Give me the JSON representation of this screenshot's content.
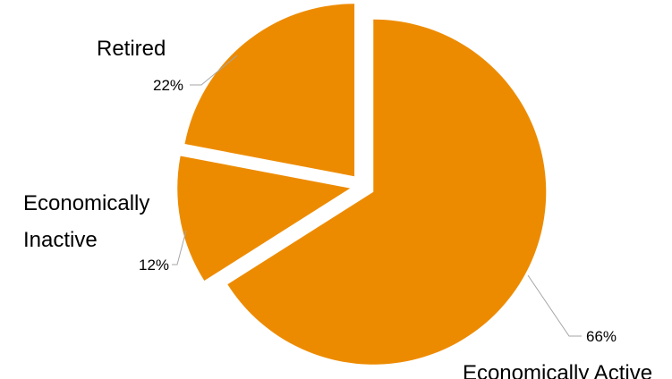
{
  "chart_data": {
    "type": "pie",
    "exploded": true,
    "color": "#ED8B00",
    "slices": [
      {
        "label_lines": [
          "Economically Active"
        ],
        "value": 66,
        "value_label": "66%"
      },
      {
        "label_lines": [
          "Economically",
          "Inactive"
        ],
        "value": 12,
        "value_label": "12%"
      },
      {
        "label_lines": [
          "Retired"
        ],
        "value": 22,
        "value_label": "22%"
      }
    ],
    "legend": "none"
  }
}
